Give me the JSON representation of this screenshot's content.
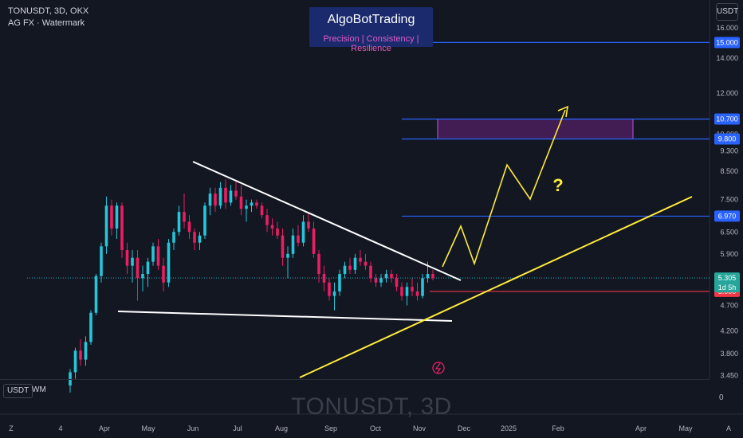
{
  "header": {
    "symbol_line": "TONUSDT, 3D, OKX",
    "indicator_line": "AG FX · Watermark"
  },
  "brand": {
    "title": "AlgoBotTrading",
    "tagline": "Precision  | Consistency | Resilience"
  },
  "toolbar": {
    "currency_button": "USDT"
  },
  "bottom_bar": {
    "usdt_label": "USDT",
    "wm_label": "WM",
    "zero_label": "0"
  },
  "watermark": {
    "symbol": "TONUSDT, 3D"
  },
  "colors": {
    "background": "#131722",
    "bull_candle": "#26c6da",
    "bear_candle": "#e91e63",
    "trendline": "#ffffff",
    "projection": "#ffeb3b",
    "level_line": "#2962ff",
    "support_line": "#f23645",
    "zone_fill": "#9c27b0"
  },
  "chart_data": {
    "type": "candlestick",
    "y_scale": "log",
    "ylim": [
      3.4,
      17.5
    ],
    "y_ticks": [
      {
        "value": 16.0,
        "label": "16.000"
      },
      {
        "value": 14.0,
        "label": "14.000"
      },
      {
        "value": 12.0,
        "label": "12.000"
      },
      {
        "value": 10.0,
        "label": "10.000"
      },
      {
        "value": 9.3,
        "label": "9.300"
      },
      {
        "value": 8.5,
        "label": "8.500"
      },
      {
        "value": 7.5,
        "label": "7.500"
      },
      {
        "value": 6.5,
        "label": "6.500"
      },
      {
        "value": 5.9,
        "label": "5.900"
      },
      {
        "value": 4.7,
        "label": "4.700"
      },
      {
        "value": 4.2,
        "label": "4.200"
      },
      {
        "value": 3.8,
        "label": "3.800"
      },
      {
        "value": 3.45,
        "label": "3.450"
      }
    ],
    "x_ticks": [
      "Z",
      "4",
      "Apr",
      "May",
      "Jun",
      "Jul",
      "Aug",
      "Sep",
      "Oct",
      "Nov",
      "Dec",
      "2025",
      "Feb",
      "Apr",
      "May",
      "A"
    ],
    "price_levels": [
      {
        "value": 15.0,
        "label": "15.000",
        "color": "#2962ff"
      },
      {
        "value": 10.7,
        "label": "10.700",
        "color": "#2962ff"
      },
      {
        "value": 9.8,
        "label": "9.800",
        "color": "#2962ff"
      },
      {
        "value": 6.97,
        "label": "6.970",
        "color": "#2962ff"
      }
    ],
    "support_level": {
      "value": 5.0,
      "label": "5.000"
    },
    "current_price": {
      "value": 5.305,
      "label": "5.305",
      "countdown": "1d 5h"
    },
    "target_zone": {
      "low": 9.8,
      "high": 10.7
    },
    "annotations": [
      {
        "text": "?",
        "color": "#ffeb3b"
      }
    ],
    "candles": [
      [
        3.3,
        3.55,
        3.2,
        3.5
      ],
      [
        3.5,
        3.9,
        3.4,
        3.85
      ],
      [
        3.85,
        4.05,
        3.6,
        3.7
      ],
      [
        3.7,
        4.1,
        3.6,
        4.0
      ],
      [
        4.0,
        4.6,
        3.95,
        4.55
      ],
      [
        4.55,
        5.4,
        4.5,
        5.35
      ],
      [
        5.35,
        6.2,
        5.2,
        6.1
      ],
      [
        6.1,
        7.6,
        5.9,
        7.3
      ],
      [
        7.3,
        7.5,
        6.4,
        6.6
      ],
      [
        6.6,
        7.4,
        6.3,
        7.3
      ],
      [
        7.3,
        7.4,
        5.8,
        6.0
      ],
      [
        6.0,
        6.2,
        5.4,
        5.6
      ],
      [
        5.6,
        6.0,
        5.2,
        5.8
      ],
      [
        5.8,
        6.0,
        4.8,
        5.3
      ],
      [
        5.3,
        5.6,
        5.0,
        5.4
      ],
      [
        5.4,
        5.8,
        5.1,
        5.7
      ],
      [
        5.7,
        6.2,
        5.6,
        6.1
      ],
      [
        6.1,
        6.3,
        5.5,
        5.6
      ],
      [
        5.6,
        5.8,
        5.0,
        5.2
      ],
      [
        5.2,
        6.3,
        5.1,
        6.2
      ],
      [
        6.2,
        6.6,
        6.0,
        6.5
      ],
      [
        6.5,
        7.3,
        6.4,
        7.1
      ],
      [
        7.1,
        7.7,
        6.6,
        6.8
      ],
      [
        6.8,
        7.0,
        6.3,
        6.5
      ],
      [
        6.5,
        6.6,
        6.0,
        6.2
      ],
      [
        6.2,
        6.5,
        6.0,
        6.4
      ],
      [
        6.4,
        7.4,
        6.3,
        7.3
      ],
      [
        7.3,
        7.9,
        7.0,
        7.7
      ],
      [
        7.7,
        7.9,
        7.1,
        7.3
      ],
      [
        7.3,
        8.1,
        7.2,
        7.9
      ],
      [
        7.9,
        8.2,
        7.2,
        7.4
      ],
      [
        7.4,
        8.0,
        7.3,
        7.8
      ],
      [
        7.8,
        8.1,
        7.5,
        7.6
      ],
      [
        7.6,
        8.0,
        7.0,
        7.2
      ],
      [
        7.2,
        7.5,
        6.8,
        7.3
      ],
      [
        7.3,
        7.5,
        7.1,
        7.4
      ],
      [
        7.4,
        7.5,
        7.2,
        7.3
      ],
      [
        7.3,
        7.4,
        6.9,
        7.0
      ],
      [
        7.0,
        7.2,
        6.5,
        6.7
      ],
      [
        6.7,
        6.9,
        6.4,
        6.6
      ],
      [
        6.6,
        6.8,
        6.3,
        6.4
      ],
      [
        6.4,
        6.6,
        5.6,
        5.8
      ],
      [
        5.8,
        6.1,
        5.3,
        5.9
      ],
      [
        5.9,
        6.6,
        5.8,
        6.4
      ],
      [
        6.4,
        6.7,
        6.1,
        6.2
      ],
      [
        6.2,
        7.0,
        6.1,
        6.8
      ],
      [
        6.8,
        7.1,
        6.5,
        6.6
      ],
      [
        6.6,
        6.8,
        5.8,
        5.9
      ],
      [
        5.9,
        6.0,
        5.2,
        5.4
      ],
      [
        5.4,
        5.6,
        5.0,
        5.2
      ],
      [
        5.2,
        5.3,
        4.8,
        4.9
      ],
      [
        4.9,
        5.2,
        4.6,
        5.0
      ],
      [
        5.0,
        5.5,
        4.9,
        5.4
      ],
      [
        5.4,
        5.7,
        5.3,
        5.6
      ],
      [
        5.6,
        5.8,
        5.4,
        5.5
      ],
      [
        5.5,
        5.9,
        5.4,
        5.8
      ],
      [
        5.8,
        6.0,
        5.6,
        5.7
      ],
      [
        5.7,
        5.9,
        5.5,
        5.6
      ],
      [
        5.6,
        5.7,
        5.2,
        5.3
      ],
      [
        5.3,
        5.4,
        5.1,
        5.2
      ],
      [
        5.2,
        5.4,
        5.1,
        5.3
      ],
      [
        5.3,
        5.5,
        5.2,
        5.4
      ],
      [
        5.4,
        5.5,
        5.2,
        5.3
      ],
      [
        5.3,
        5.4,
        5.0,
        5.1
      ],
      [
        5.1,
        5.2,
        4.8,
        4.9
      ],
      [
        4.9,
        5.2,
        4.7,
        5.1
      ],
      [
        5.1,
        5.3,
        4.9,
        5.0
      ],
      [
        5.0,
        5.2,
        4.8,
        4.9
      ],
      [
        4.9,
        5.4,
        4.85,
        5.3
      ],
      [
        5.3,
        5.7,
        5.2,
        5.4
      ],
      [
        5.4,
        5.5,
        5.25,
        5.305
      ]
    ]
  }
}
